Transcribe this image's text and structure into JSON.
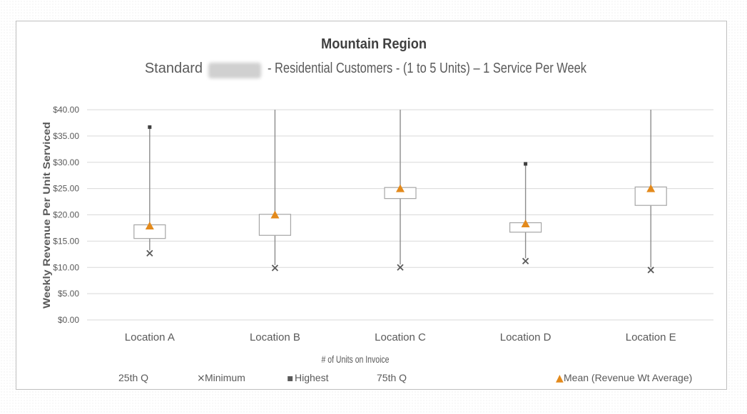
{
  "chart_data": {
    "type": "box",
    "title": "Mountain Region",
    "subtitle_left": "Standard",
    "subtitle_right": "- Residential Customers - (1 to 5 Units) – 1 Service Per Week",
    "xlabel": "# of Units on Invoice",
    "ylabel": "Weekly Revenue Per Unit Serviced",
    "ylim": [
      0,
      40
    ],
    "yticks": [
      0,
      5,
      10,
      15,
      20,
      25,
      30,
      35,
      40
    ],
    "ytick_labels": [
      "$0.00",
      "$5.00",
      "$10.00",
      "$15.00",
      "$20.00",
      "$25.00",
      "$30.00",
      "$35.00",
      "$40.00"
    ],
    "categories": [
      "Location A",
      "Location B",
      "Location C",
      "Location D",
      "Location E"
    ],
    "q1": [
      15.5,
      16.1,
      23.1,
      16.7,
      21.8
    ],
    "q3": [
      18.1,
      20.1,
      25.2,
      18.5,
      25.3
    ],
    "minimum": [
      12.7,
      9.9,
      10.0,
      11.2,
      9.5
    ],
    "highest": [
      36.7,
      40,
      40,
      29.7,
      40
    ],
    "mean": [
      17.9,
      20.0,
      25.0,
      18.3,
      25.0
    ],
    "grid": true,
    "colors": {
      "mean": "#e38a1c",
      "box": "#a6a6a6",
      "grid": "#d9d9d9",
      "text": "#595959"
    },
    "legend": {
      "position": "bottom",
      "items": [
        {
          "label": "25th Q",
          "marker": ""
        },
        {
          "label": "Minimum",
          "marker": "×"
        },
        {
          "label": "Highest",
          "marker": "▪"
        },
        {
          "label": "75th Q",
          "marker": ""
        },
        {
          "label": "Mean (Revenue Wt Average)",
          "marker": "▲"
        }
      ]
    }
  }
}
